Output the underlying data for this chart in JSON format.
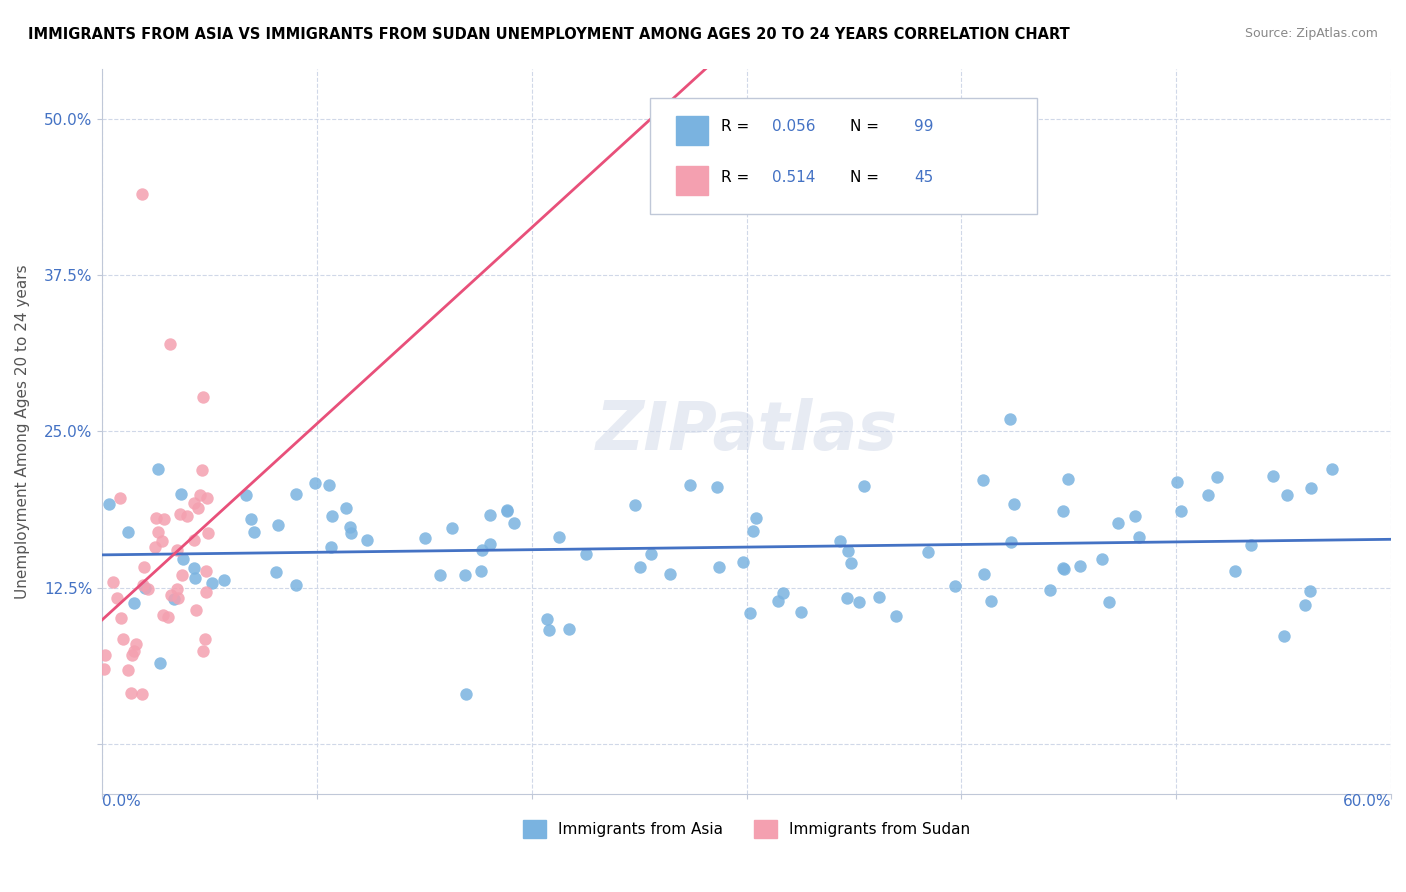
{
  "title": "IMMIGRANTS FROM ASIA VS IMMIGRANTS FROM SUDAN UNEMPLOYMENT AMONG AGES 20 TO 24 YEARS CORRELATION CHART",
  "source": "Source: ZipAtlas.com",
  "ylabel": "Unemployment Among Ages 20 to 24 years",
  "yticks": [
    0.0,
    0.125,
    0.25,
    0.375,
    0.5
  ],
  "ytick_labels": [
    "",
    "12.5%",
    "25.0%",
    "37.5%",
    "50.0%"
  ],
  "xlim": [
    0.0,
    0.6
  ],
  "ylim": [
    -0.04,
    0.54
  ],
  "series_asia": {
    "marker_color": "#7ab3e0",
    "line_color": "#4472c4",
    "R": 0.056,
    "N": 99
  },
  "series_sudan": {
    "marker_color": "#f4a0b0",
    "line_color": "#e8507a",
    "R": 0.514,
    "N": 45
  },
  "watermark": "ZIPatlas",
  "background_color": "#ffffff",
  "grid_color": "#d0d8e8",
  "axis_color": "#c0c8d8",
  "legend_r_color": "#4472c4"
}
